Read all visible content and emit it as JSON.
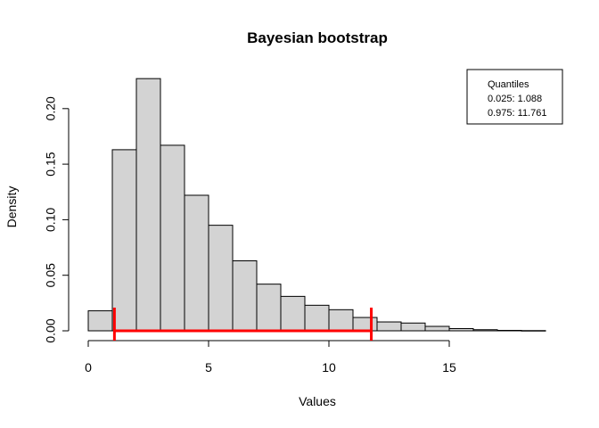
{
  "chart_data": {
    "type": "bar",
    "title": "Bayesian bootstrap",
    "xlabel": "Values",
    "ylabel": "Density",
    "xlim": [
      0,
      19
    ],
    "ylim": [
      0,
      0.23
    ],
    "x_ticks": [
      0,
      5,
      10,
      15
    ],
    "y_ticks": [
      0.0,
      0.05,
      0.1,
      0.15,
      0.2
    ],
    "y_tick_labels": [
      "0.00",
      "0.05",
      "0.10",
      "0.15",
      "0.20"
    ],
    "bin_width": 1,
    "bins": [
      {
        "start": 0,
        "end": 1,
        "density": 0.018
      },
      {
        "start": 1,
        "end": 2,
        "density": 0.163
      },
      {
        "start": 2,
        "end": 3,
        "density": 0.227
      },
      {
        "start": 3,
        "end": 4,
        "density": 0.167
      },
      {
        "start": 4,
        "end": 5,
        "density": 0.122
      },
      {
        "start": 5,
        "end": 6,
        "density": 0.095
      },
      {
        "start": 6,
        "end": 7,
        "density": 0.063
      },
      {
        "start": 7,
        "end": 8,
        "density": 0.042
      },
      {
        "start": 8,
        "end": 9,
        "density": 0.031
      },
      {
        "start": 9,
        "end": 10,
        "density": 0.023
      },
      {
        "start": 10,
        "end": 11,
        "density": 0.019
      },
      {
        "start": 11,
        "end": 12,
        "density": 0.012
      },
      {
        "start": 12,
        "end": 13,
        "density": 0.008
      },
      {
        "start": 13,
        "end": 14,
        "density": 0.007
      },
      {
        "start": 14,
        "end": 15,
        "density": 0.004
      },
      {
        "start": 15,
        "end": 16,
        "density": 0.002
      },
      {
        "start": 16,
        "end": 17,
        "density": 0.001
      },
      {
        "start": 17,
        "end": 18,
        "density": 0.0004
      },
      {
        "start": 18,
        "end": 19,
        "density": 0.0002
      }
    ],
    "bar_fill": "#d3d3d3",
    "interval": {
      "lower": 1.088,
      "upper": 11.761,
      "color": "#ff0000"
    },
    "legend": {
      "placement": "top-right",
      "title": "Quantiles",
      "lines": [
        "0.025: 1.088",
        "0.975: 11.761"
      ]
    }
  }
}
